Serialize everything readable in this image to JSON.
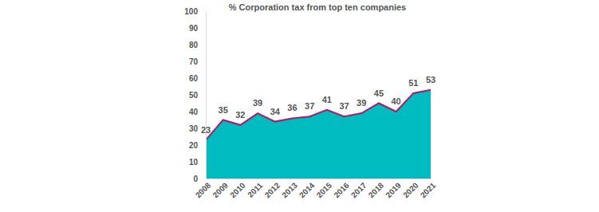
{
  "chart_data": {
    "type": "area",
    "title": "% Corporation tax from top ten companies",
    "categories": [
      "2008",
      "2009",
      "2010",
      "2011",
      "2012",
      "2013",
      "2014",
      "2015",
      "2016",
      "2017",
      "2018",
      "2019",
      "2020",
      "2021"
    ],
    "values": [
      23,
      35,
      32,
      39,
      34,
      36,
      37,
      41,
      37,
      39,
      45,
      40,
      51,
      53
    ],
    "color": "#00bcc1",
    "ylim": [
      0,
      100
    ],
    "yticks": [
      0,
      10,
      20,
      30,
      40,
      50,
      60,
      70,
      80,
      90,
      100
    ],
    "grid": false,
    "data_labels": true
  }
}
